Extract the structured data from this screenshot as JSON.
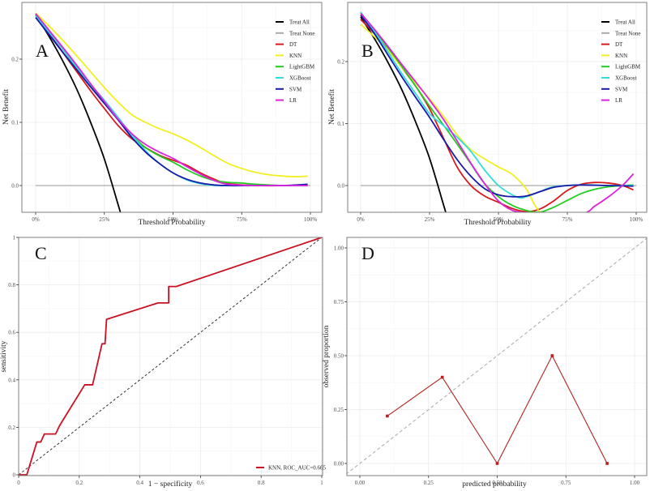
{
  "chart_data": [
    {
      "id": "A",
      "type": "line",
      "title": "",
      "panel_label": "A",
      "xlabel": "Threshold Probability",
      "ylabel": "Net Benefit",
      "xlim": [
        0,
        1
      ],
      "ylim": [
        -0.043,
        0.29
      ],
      "x_ticks": [
        0,
        0.25,
        0.5,
        0.75,
        1.0
      ],
      "x_tick_labels": [
        "0%",
        "25%",
        "50%",
        "75%",
        "100%"
      ],
      "y_ticks": [
        0.0,
        0.1,
        0.2
      ],
      "y_tick_labels": [
        "0.0",
        "0.1",
        "0.2"
      ],
      "grid": true,
      "legend_position": "top-right",
      "series": [
        {
          "name": "Treat All",
          "color": "#000000",
          "x": [
            0,
            0.05,
            0.1,
            0.15,
            0.2,
            0.25,
            0.3,
            0.31
          ],
          "y": [
            0.27,
            0.235,
            0.196,
            0.152,
            0.1,
            0.042,
            -0.03,
            -0.045
          ]
        },
        {
          "name": "Treat None",
          "color": "#aaaaaa",
          "x": [
            0,
            1
          ],
          "y": [
            0,
            0
          ]
        },
        {
          "name": "DT",
          "color": "#d7191c",
          "x": [
            0,
            0.05,
            0.1,
            0.15,
            0.2,
            0.25,
            0.3,
            0.35,
            0.4,
            0.45,
            0.5,
            0.55,
            0.6,
            0.65,
            0.7,
            0.8,
            0.9,
            0.99
          ],
          "y": [
            0.27,
            0.24,
            0.21,
            0.18,
            0.15,
            0.122,
            0.095,
            0.074,
            0.06,
            0.048,
            0.04,
            0.032,
            0.02,
            0.01,
            0.003,
            0.0,
            0.0,
            0.001
          ]
        },
        {
          "name": "KNN",
          "color": "#f0f020",
          "x": [
            0,
            0.05,
            0.1,
            0.15,
            0.2,
            0.25,
            0.3,
            0.35,
            0.4,
            0.45,
            0.5,
            0.55,
            0.6,
            0.65,
            0.7,
            0.75,
            0.8,
            0.85,
            0.9,
            0.95,
            0.99
          ],
          "y": [
            0.273,
            0.252,
            0.229,
            0.205,
            0.18,
            0.155,
            0.132,
            0.112,
            0.1,
            0.09,
            0.082,
            0.072,
            0.06,
            0.047,
            0.035,
            0.027,
            0.021,
            0.017,
            0.015,
            0.014,
            0.015
          ]
        },
        {
          "name": "LightGBM",
          "color": "#22cc22",
          "x": [
            0,
            0.05,
            0.1,
            0.15,
            0.2,
            0.25,
            0.3,
            0.35,
            0.4,
            0.45,
            0.5,
            0.55,
            0.6,
            0.65,
            0.7,
            0.75,
            0.8,
            0.9,
            0.99
          ],
          "y": [
            0.27,
            0.243,
            0.215,
            0.185,
            0.158,
            0.13,
            0.104,
            0.08,
            0.06,
            0.047,
            0.037,
            0.025,
            0.015,
            0.008,
            0.005,
            0.004,
            0.002,
            0.0,
            0.0
          ]
        },
        {
          "name": "XGBoost",
          "color": "#33dddd",
          "x": [
            0,
            0.05,
            0.1,
            0.15,
            0.2,
            0.25,
            0.3,
            0.35,
            0.4,
            0.45,
            0.5,
            0.55,
            0.6,
            0.65,
            0.7,
            0.8,
            0.9,
            0.99
          ],
          "y": [
            0.268,
            0.242,
            0.215,
            0.187,
            0.16,
            0.135,
            0.108,
            0.08,
            0.055,
            0.035,
            0.02,
            0.009,
            0.003,
            0.0,
            0.0,
            0.0,
            0.0,
            0.0
          ]
        },
        {
          "name": "SVM",
          "color": "#1a1aa8",
          "x": [
            0,
            0.05,
            0.1,
            0.15,
            0.2,
            0.25,
            0.3,
            0.35,
            0.4,
            0.45,
            0.5,
            0.55,
            0.6,
            0.65,
            0.7,
            0.8,
            0.9,
            0.99
          ],
          "y": [
            0.266,
            0.238,
            0.21,
            0.183,
            0.156,
            0.13,
            0.104,
            0.076,
            0.053,
            0.035,
            0.02,
            0.01,
            0.004,
            0.001,
            0.0,
            0.0,
            0.0,
            0.002
          ]
        },
        {
          "name": "LR",
          "color": "#dd22dd",
          "x": [
            0,
            0.05,
            0.1,
            0.15,
            0.2,
            0.25,
            0.3,
            0.35,
            0.4,
            0.45,
            0.5,
            0.55,
            0.6,
            0.65,
            0.7,
            0.8,
            0.9,
            0.99
          ],
          "y": [
            0.272,
            0.245,
            0.218,
            0.19,
            0.161,
            0.133,
            0.105,
            0.082,
            0.065,
            0.053,
            0.043,
            0.03,
            0.018,
            0.008,
            0.002,
            0.0,
            0.0,
            0.0
          ]
        }
      ]
    },
    {
      "id": "B",
      "type": "line",
      "title": "",
      "panel_label": "B",
      "xlabel": "Threshold Probability",
      "ylabel": "Net Benefit",
      "xlim": [
        0,
        1
      ],
      "ylim": [
        -0.043,
        0.29
      ],
      "x_ticks": [
        0,
        0.25,
        0.5,
        0.75,
        1.0
      ],
      "x_tick_labels": [
        "0%",
        "25%",
        "50%",
        "75%",
        "100%"
      ],
      "y_ticks": [
        0.0,
        0.1,
        0.2
      ],
      "y_tick_labels": [
        "0.0",
        "0.1",
        "0.2"
      ],
      "grid": true,
      "legend_position": "top-right",
      "series": [
        {
          "name": "Treat All",
          "color": "#000000",
          "x": [
            0,
            0.05,
            0.1,
            0.15,
            0.2,
            0.25,
            0.3,
            0.31
          ],
          "y": [
            0.272,
            0.237,
            0.198,
            0.154,
            0.102,
            0.044,
            -0.03,
            -0.045
          ]
        },
        {
          "name": "Treat None",
          "color": "#aaaaaa",
          "x": [
            0,
            1
          ],
          "y": [
            0,
            0
          ]
        },
        {
          "name": "DT",
          "color": "#d7191c",
          "x": [
            0,
            0.05,
            0.1,
            0.15,
            0.2,
            0.25,
            0.3,
            0.35,
            0.4,
            0.45,
            0.5,
            0.55,
            0.6,
            0.65,
            0.7,
            0.75,
            0.8,
            0.85,
            0.9,
            0.95,
            0.99
          ],
          "y": [
            0.268,
            0.245,
            0.218,
            0.19,
            0.16,
            0.124,
            0.077,
            0.03,
            0.0,
            -0.017,
            -0.027,
            -0.037,
            -0.042,
            -0.038,
            -0.025,
            -0.008,
            0.002,
            0.005,
            0.004,
            0.0,
            -0.007
          ]
        },
        {
          "name": "KNN",
          "color": "#f0f020",
          "x": [
            0,
            0.05,
            0.1,
            0.15,
            0.2,
            0.25,
            0.3,
            0.35,
            0.4,
            0.45,
            0.5,
            0.55,
            0.6,
            0.63,
            0.65
          ],
          "y": [
            0.26,
            0.24,
            0.218,
            0.19,
            0.165,
            0.14,
            0.112,
            0.082,
            0.058,
            0.043,
            0.03,
            0.018,
            -0.005,
            -0.03,
            -0.043
          ]
        },
        {
          "name": "LightGBM",
          "color": "#22cc22",
          "x": [
            0,
            0.05,
            0.1,
            0.15,
            0.2,
            0.25,
            0.3,
            0.35,
            0.4,
            0.45,
            0.5,
            0.55,
            0.6,
            0.65,
            0.7,
            0.75,
            0.8,
            0.85,
            0.9,
            0.95,
            0.99
          ],
          "y": [
            0.275,
            0.25,
            0.222,
            0.192,
            0.16,
            0.128,
            0.098,
            0.067,
            0.035,
            0.003,
            -0.018,
            -0.032,
            -0.04,
            -0.043,
            -0.035,
            -0.024,
            -0.013,
            -0.006,
            -0.002,
            0.0,
            0.001
          ]
        },
        {
          "name": "XGBoost",
          "color": "#33dddd",
          "x": [
            0,
            0.05,
            0.1,
            0.15,
            0.2,
            0.25,
            0.3,
            0.35,
            0.4,
            0.45,
            0.5,
            0.55,
            0.58,
            0.6,
            0.65,
            0.7,
            0.8,
            0.9,
            0.99
          ],
          "y": [
            0.28,
            0.248,
            0.215,
            0.18,
            0.148,
            0.116,
            0.097,
            0.078,
            0.055,
            0.025,
            0.0,
            -0.015,
            -0.02,
            -0.018,
            -0.01,
            -0.002,
            0.001,
            0.0,
            0.0
          ]
        },
        {
          "name": "SVM",
          "color": "#1a1aa8",
          "x": [
            0,
            0.05,
            0.1,
            0.15,
            0.2,
            0.25,
            0.3,
            0.35,
            0.4,
            0.45,
            0.5,
            0.55,
            0.6,
            0.65,
            0.7,
            0.75,
            0.8,
            0.9,
            0.99
          ],
          "y": [
            0.275,
            0.245,
            0.21,
            0.175,
            0.142,
            0.11,
            0.075,
            0.042,
            0.015,
            -0.005,
            -0.015,
            -0.018,
            -0.017,
            -0.01,
            -0.003,
            0.0,
            0.001,
            0.0,
            -0.001
          ]
        },
        {
          "name": "LR",
          "color": "#dd22dd",
          "x": [
            0,
            0.05,
            0.1,
            0.15,
            0.2,
            0.25,
            0.3,
            0.35,
            0.4,
            0.45,
            0.5,
            0.55,
            0.6,
            0.62,
            0.8,
            0.85,
            0.9,
            0.95,
            0.99
          ],
          "y": [
            0.278,
            0.252,
            0.224,
            0.195,
            0.167,
            0.138,
            0.107,
            0.072,
            0.036,
            0.003,
            -0.025,
            -0.04,
            -0.044,
            -0.045,
            -0.045,
            -0.033,
            -0.018,
            0.0,
            0.019
          ]
        }
      ]
    },
    {
      "id": "C",
      "type": "line",
      "title": "",
      "panel_label": "C",
      "xlabel": "1 − specificity",
      "ylabel": "sensitivity",
      "xlim": [
        0,
        1
      ],
      "ylim": [
        0,
        1
      ],
      "x_ticks": [
        0,
        0.2,
        0.4,
        0.6,
        0.8,
        1
      ],
      "x_tick_labels": [
        "0",
        "0.2",
        "0.4",
        "0.6",
        "0.8",
        "1"
      ],
      "y_ticks": [
        0,
        0.2,
        0.4,
        0.6,
        0.8,
        1
      ],
      "y_tick_labels": [
        "0",
        "0.2",
        "0.4",
        "0.6",
        "0.8",
        "1"
      ],
      "grid": true,
      "legend_position": "bottom-right",
      "series": [
        {
          "name": "KNN, ROC_AUC=0.665",
          "color": "#cc1122",
          "x": [
            0,
            0.027,
            0.06,
            0.073,
            0.085,
            0.122,
            0.135,
            0.218,
            0.244,
            0.275,
            0.285,
            0.29,
            0.46,
            0.495,
            0.495,
            0.52,
            1.0
          ],
          "y": [
            0,
            0,
            0.138,
            0.138,
            0.172,
            0.172,
            0.207,
            0.379,
            0.379,
            0.552,
            0.552,
            0.655,
            0.724,
            0.724,
            0.793,
            0.793,
            1.0
          ]
        },
        {
          "name": "reference",
          "color": "#333333",
          "dashed": true,
          "x": [
            0,
            1
          ],
          "y": [
            0,
            1
          ]
        }
      ]
    },
    {
      "id": "D",
      "type": "line",
      "title": "",
      "panel_label": "D",
      "xlabel": "predicted probability",
      "ylabel": "observed proportion",
      "xlim": [
        -0.05,
        1.05
      ],
      "ylim": [
        -0.05,
        1.05
      ],
      "x_ticks": [
        0,
        0.25,
        0.5,
        0.75,
        1.0
      ],
      "x_tick_labels": [
        "0.00",
        "0.25",
        "0.50",
        "0.75",
        "1.00"
      ],
      "y_ticks": [
        0,
        0.25,
        0.5,
        0.75,
        1.0
      ],
      "y_tick_labels": [
        "0.00",
        "0.25",
        "0.50",
        "0.75",
        "1.00"
      ],
      "grid": true,
      "legend_position": "none",
      "series": [
        {
          "name": "calibration",
          "color": "#b22222",
          "markers": true,
          "x": [
            0.1,
            0.3,
            0.5,
            0.7,
            0.9
          ],
          "y": [
            0.22,
            0.4,
            0.0,
            0.5,
            0.0
          ]
        },
        {
          "name": "ideal",
          "color": "#b0b0b0",
          "dashed": true,
          "x": [
            -0.05,
            1.05
          ],
          "y": [
            -0.05,
            1.05
          ]
        }
      ]
    }
  ]
}
